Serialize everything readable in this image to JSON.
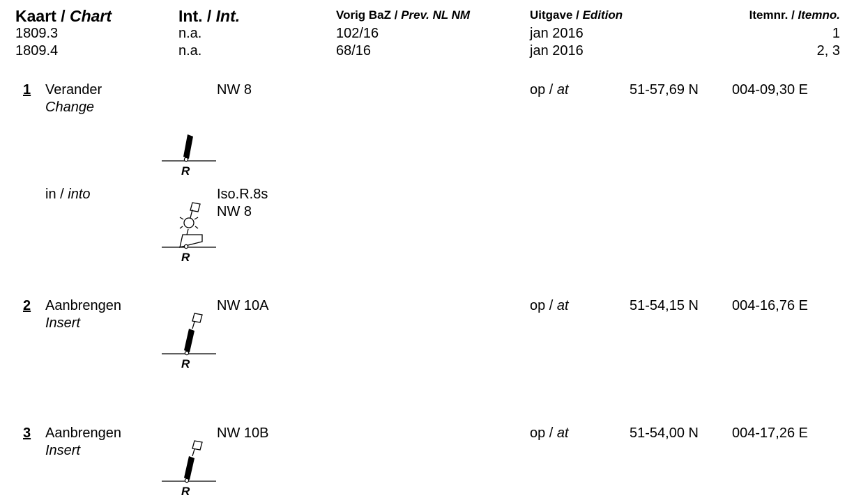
{
  "header": {
    "chart_nl": "Kaart / ",
    "chart_en": "Chart",
    "int_nl": "Int. / ",
    "int_en": "Int.",
    "prev_nl": "Vorig BaZ / ",
    "prev_en": "Prev. NL NM",
    "edition_nl": "Uitgave / ",
    "edition_en": "Edition",
    "itemno_nl": "Itemnr. / ",
    "itemno_en": "Itemno."
  },
  "charts": [
    {
      "chart": "1809.3",
      "int": "n.a.",
      "prev": "102/16",
      "edition": "jan 2016",
      "items": "1"
    },
    {
      "chart": "1809.4",
      "int": "n.a.",
      "prev": "68/16",
      "edition": "jan 2016",
      "items": "2, 3"
    }
  ],
  "symbol_letter": "R",
  "items": [
    {
      "number": "1",
      "action_nl": "Verander",
      "action_en": "Change",
      "name": "NW 8",
      "at_nl": "op / ",
      "at_en": "at",
      "lat": "51-57,69 N",
      "lon": "004-09,30 E",
      "into": {
        "label_nl": "in / ",
        "label_en": "into",
        "light": "Iso.R.8s",
        "name": "NW 8"
      }
    },
    {
      "number": "2",
      "action_nl": "Aanbrengen",
      "action_en": "Insert",
      "name": "NW 10A",
      "at_nl": "op / ",
      "at_en": "at",
      "lat": "51-54,15 N",
      "lon": "004-16,76 E"
    },
    {
      "number": "3",
      "action_nl": "Aanbrengen",
      "action_en": "Insert",
      "name": "NW 10B",
      "at_nl": "op / ",
      "at_en": "at",
      "lat": "51-54,00 N",
      "lon": "004-17,26 E"
    }
  ]
}
